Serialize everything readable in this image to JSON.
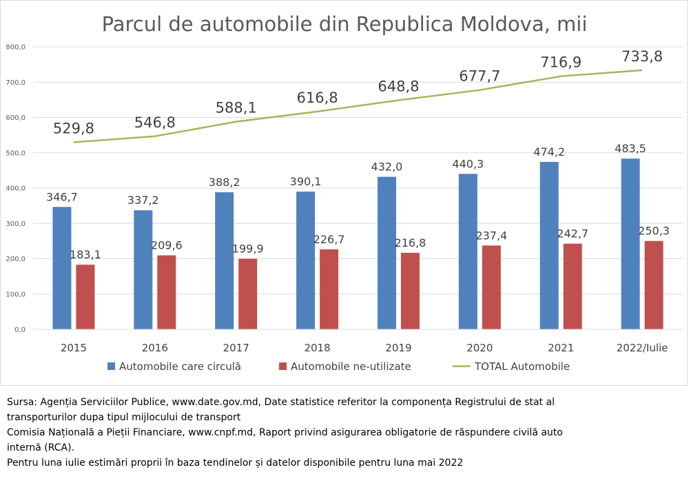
{
  "chart_data": {
    "type": "bar",
    "title": "Parcul de automobile din Republica Moldova, mii",
    "categories": [
      "2015",
      "2016",
      "2017",
      "2018",
      "2019",
      "2020",
      "2021",
      "2022/Iulie"
    ],
    "series": [
      {
        "name": "Automobile care circulă",
        "type": "bar",
        "color": "#4f81bd",
        "values": [
          346.7,
          337.2,
          388.2,
          390.1,
          432.0,
          440.3,
          474.2,
          483.5
        ],
        "labels": [
          "346,7",
          "337,2",
          "388,2",
          "390,1",
          "432,0",
          "440,3",
          "474,2",
          "483,5"
        ]
      },
      {
        "name": "Automobile ne-utilizate",
        "type": "bar",
        "color": "#c0504d",
        "values": [
          183.1,
          209.6,
          199.9,
          226.7,
          216.8,
          237.4,
          242.7,
          250.3
        ],
        "labels": [
          "183,1",
          "209,6",
          "199,9",
          "226,7",
          "216,8",
          "237,4",
          "242,7",
          "250,3"
        ]
      },
      {
        "name": "TOTAL Automobile",
        "type": "line",
        "color": "#9bbb59",
        "values": [
          529.8,
          546.8,
          588.1,
          616.8,
          648.8,
          677.7,
          716.9,
          733.8
        ],
        "labels": [
          "529,8",
          "546,8",
          "588,1",
          "616,8",
          "648,8",
          "677,7",
          "716,9",
          "733,8"
        ]
      }
    ],
    "ylim": [
      0,
      800
    ],
    "yticks": [
      0,
      100,
      200,
      300,
      400,
      500,
      600,
      700,
      800
    ],
    "ytick_labels": [
      "0,0",
      "100,0",
      "200,0",
      "300,0",
      "400,0",
      "500,0",
      "600,0",
      "700,0",
      "800,0"
    ],
    "grid": true,
    "legend_position": "bottom",
    "xlabel": "",
    "ylabel": ""
  },
  "source_lines": [
    "Sursa: Agenția Serviciilor Publice, www.date.gov.md,  Date statistice referitor la componența Registrului de stat al",
    "transporturilor dupa tipul mijlocului de transport",
    "Comisia Națională a Pieții Financiare, www.cnpf.md, Raport privind asigurarea obligatorie de răspundere civilă auto",
    "internă (RCA).",
    "Pentru luna iulie estimări proprii în baza tendinelor și datelor disponibile pentru luna mai 2022"
  ]
}
